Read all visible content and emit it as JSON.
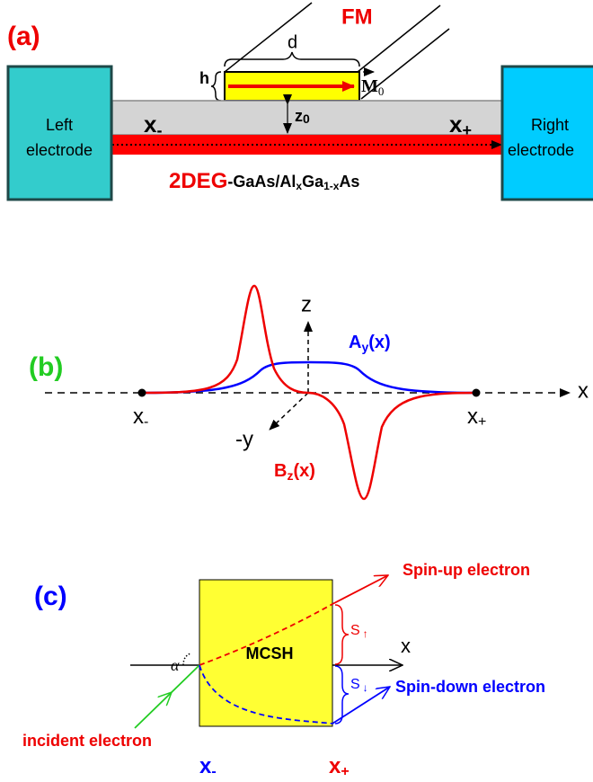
{
  "panel_a": {
    "label": "(a)",
    "ferromagnet": "FM",
    "length": "d",
    "height": "h",
    "magnetization": {
      "symbol": "M",
      "subscript": "0"
    },
    "left_electrode": [
      "Left",
      "electrode"
    ],
    "right_electrode": [
      "Right",
      "electrode"
    ],
    "x_minus": {
      "symbol": "x",
      "subscript": "-"
    },
    "x_plus": {
      "symbol": "x",
      "subscript": "+"
    },
    "distance": {
      "symbol": "z",
      "subscript": "0"
    },
    "layer": {
      "name": "2DEG",
      "parts": [
        "-GaAs/Al",
        "x",
        "Ga",
        "1-x",
        "As"
      ]
    }
  },
  "panel_b": {
    "label": "(b)",
    "x_axis": "x",
    "z_axis": "z",
    "y_axis": "-y",
    "x_minus": {
      "symbol": "x",
      "subscript": "-"
    },
    "x_plus": {
      "symbol": "x",
      "subscript": "+"
    },
    "vector_potential": {
      "symbol": "A",
      "subscript": "y",
      "argument": "(x)"
    },
    "magnetic_field": {
      "symbol": "B",
      "subscript": "z",
      "argument": "(x)"
    }
  },
  "panel_c": {
    "label": "(c)",
    "device": "MCSH",
    "x_axis": "x",
    "angle": "α",
    "incident": "incident electron",
    "spin_up": "Spin-up electron",
    "spin_down": "Spin-down electron",
    "shift_up": {
      "symbol": "S",
      "subscript": "↑"
    },
    "shift_down": {
      "symbol": "S",
      "subscript": "↓"
    },
    "x_minus": {
      "symbol": "x",
      "subscript": "-"
    },
    "x_plus": {
      "symbol": "x",
      "subscript": "+"
    }
  }
}
